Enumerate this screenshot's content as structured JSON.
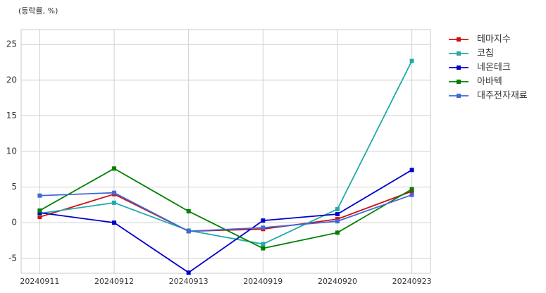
{
  "chart_data": {
    "type": "line",
    "ylabel": "(등락률, %)",
    "categories": [
      "20240911",
      "20240912",
      "20240913",
      "20240919",
      "20240920",
      "20240923"
    ],
    "series": [
      {
        "name": "테마지수",
        "color": "#d01010",
        "values": [
          0.8,
          4.0,
          -1.2,
          -0.9,
          0.5,
          4.4
        ]
      },
      {
        "name": "코칩",
        "color": "#22aaaa",
        "values": [
          1.3,
          2.8,
          -1.1,
          -3.0,
          1.9,
          22.7
        ]
      },
      {
        "name": "네온테크",
        "color": "#0000cc",
        "values": [
          1.4,
          0.0,
          -7.0,
          0.3,
          1.2,
          7.4
        ]
      },
      {
        "name": "아바텍",
        "color": "#008000",
        "values": [
          1.7,
          7.6,
          1.6,
          -3.6,
          -1.4,
          4.7
        ]
      },
      {
        "name": "대주전자재료",
        "color": "#4169d6",
        "values": [
          3.8,
          4.2,
          -1.2,
          -0.7,
          0.2,
          3.9
        ]
      }
    ],
    "ylim": [
      -7.1,
      27.1
    ],
    "yticks": [
      -5,
      0,
      5,
      10,
      15,
      20,
      25
    ],
    "grid": true
  }
}
